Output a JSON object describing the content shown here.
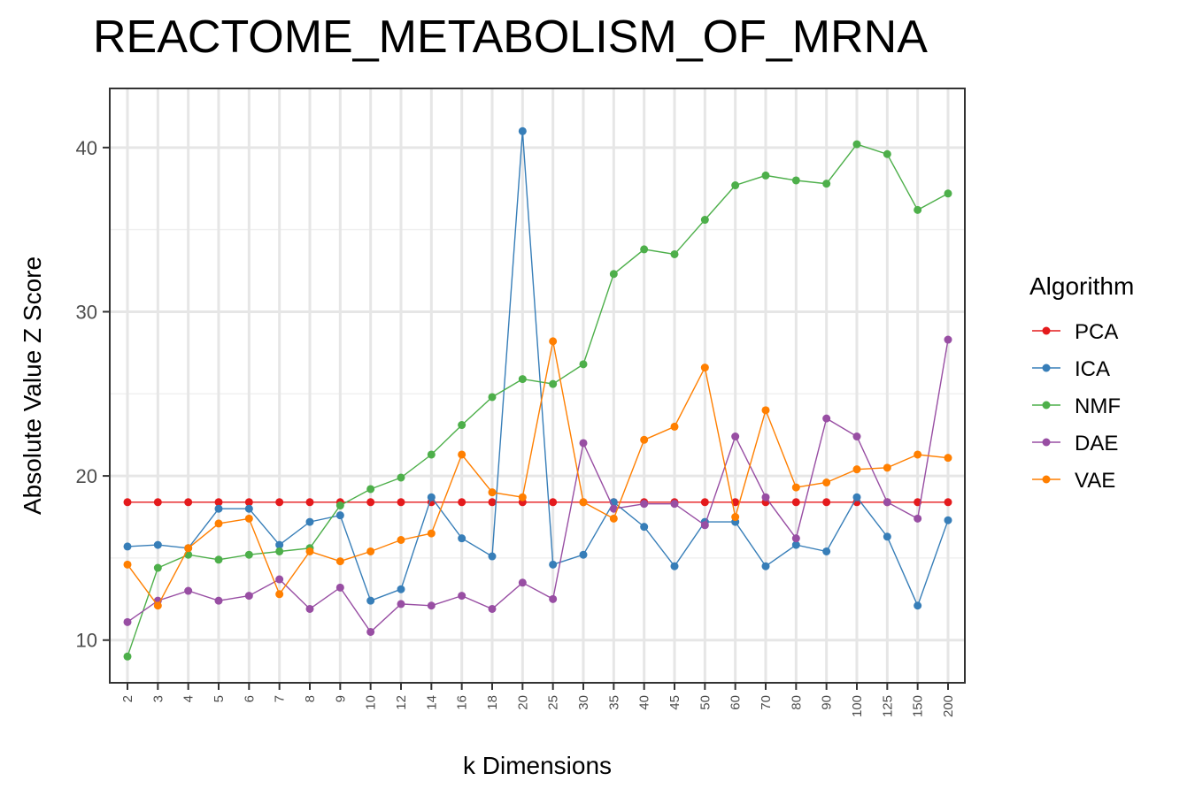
{
  "chart_data": {
    "type": "line",
    "title": "REACTOME_METABOLISM_OF_MRNA",
    "xlabel": "k Dimensions",
    "ylabel": "Absolute Value Z Score",
    "legend_title": "Algorithm",
    "legend_position": "right",
    "grid": true,
    "ylim": [
      7.4,
      43.6
    ],
    "yticks": [
      10,
      20,
      30,
      40
    ],
    "categories": [
      "2",
      "3",
      "4",
      "5",
      "6",
      "7",
      "8",
      "9",
      "10",
      "12",
      "14",
      "16",
      "18",
      "20",
      "25",
      "30",
      "35",
      "40",
      "45",
      "50",
      "60",
      "70",
      "80",
      "90",
      "100",
      "125",
      "150",
      "200"
    ],
    "series": [
      {
        "name": "PCA",
        "color": "#e41a1c",
        "values": [
          18.4,
          18.4,
          18.4,
          18.4,
          18.4,
          18.4,
          18.4,
          18.4,
          18.4,
          18.4,
          18.4,
          18.4,
          18.4,
          18.4,
          18.4,
          18.4,
          18.4,
          18.4,
          18.4,
          18.4,
          18.4,
          18.4,
          18.4,
          18.4,
          18.4,
          18.4,
          18.4,
          18.4
        ]
      },
      {
        "name": "ICA",
        "color": "#377eb8",
        "values": [
          15.7,
          15.8,
          15.6,
          18.0,
          18.0,
          15.8,
          17.2,
          17.6,
          12.4,
          13.1,
          18.7,
          16.2,
          15.1,
          41.0,
          14.6,
          15.2,
          18.4,
          16.9,
          14.5,
          17.2,
          17.2,
          14.5,
          15.8,
          15.4,
          18.7,
          16.3,
          12.1,
          17.3
        ]
      },
      {
        "name": "NMF",
        "color": "#4daf4a",
        "values": [
          9.0,
          14.4,
          15.2,
          14.9,
          15.2,
          15.4,
          15.6,
          18.2,
          19.2,
          19.9,
          21.3,
          23.1,
          24.8,
          25.9,
          25.6,
          26.8,
          32.3,
          33.8,
          33.5,
          35.6,
          37.7,
          38.3,
          38.0,
          37.8,
          40.2,
          39.6,
          36.2,
          37.2
        ]
      },
      {
        "name": "DAE",
        "color": "#984ea3",
        "values": [
          11.1,
          12.4,
          13.0,
          12.4,
          12.7,
          13.7,
          11.9,
          13.2,
          10.5,
          12.2,
          12.1,
          12.7,
          11.9,
          13.5,
          12.5,
          22.0,
          18.0,
          18.3,
          18.3,
          17.0,
          22.4,
          18.7,
          16.2,
          23.5,
          22.4,
          18.4,
          17.4,
          28.3
        ]
      },
      {
        "name": "VAE",
        "color": "#ff7f00",
        "values": [
          14.6,
          12.1,
          15.6,
          17.1,
          17.4,
          12.8,
          15.4,
          14.8,
          15.4,
          16.1,
          16.5,
          21.3,
          19.0,
          18.7,
          28.2,
          18.4,
          17.4,
          22.2,
          23.0,
          26.6,
          17.5,
          24.0,
          19.3,
          19.6,
          20.4,
          20.5,
          21.3,
          21.1
        ]
      }
    ]
  }
}
